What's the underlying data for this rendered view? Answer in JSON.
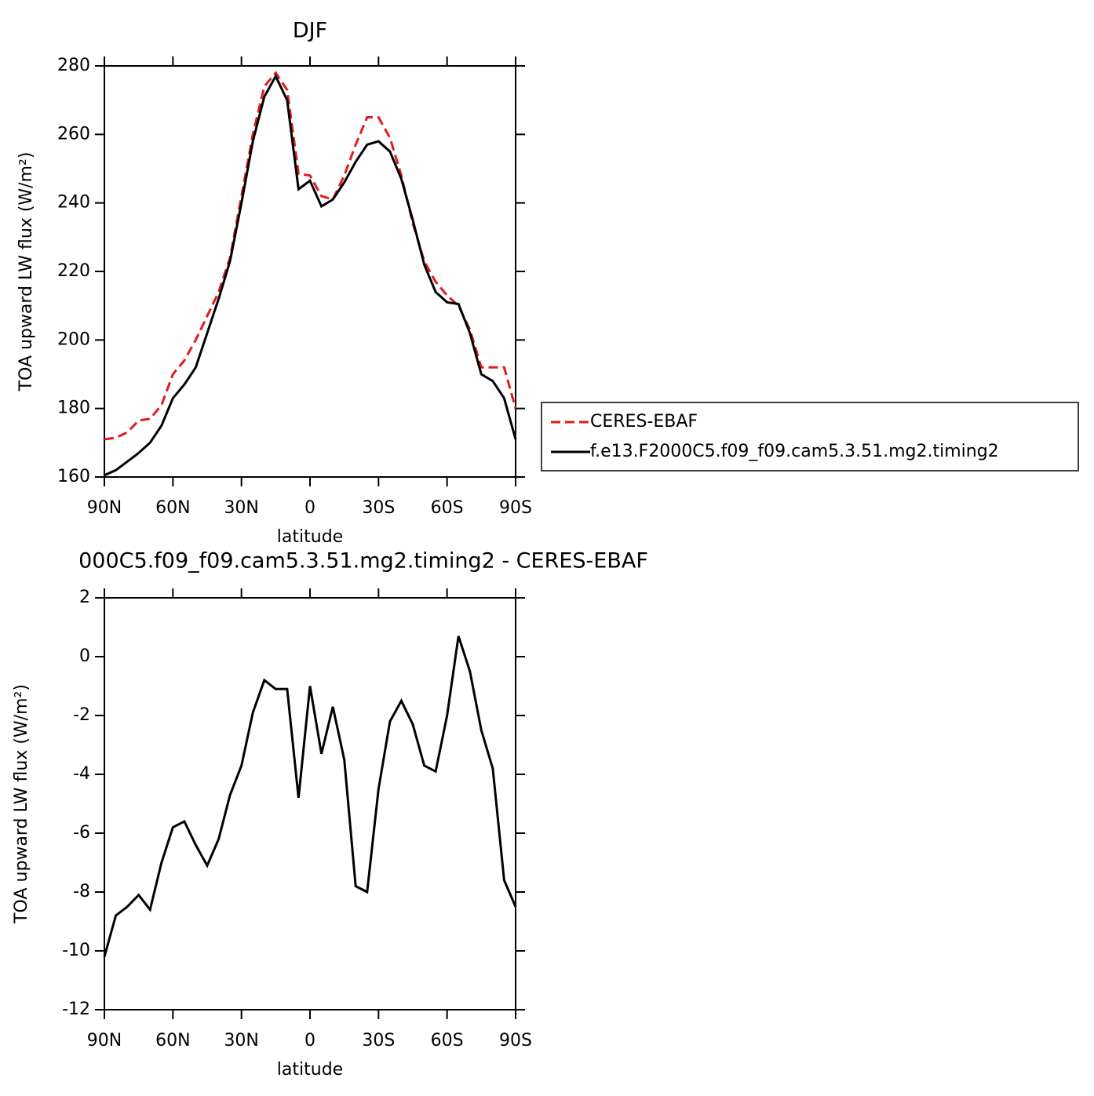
{
  "chart_data": [
    {
      "type": "line",
      "title": "DJF",
      "x_label": "latitude",
      "y_label": "TOA upward LW flux (W/m²)",
      "x": [
        90,
        85,
        80,
        75,
        70,
        65,
        60,
        55,
        50,
        45,
        40,
        35,
        30,
        25,
        20,
        15,
        10,
        5,
        0,
        -5,
        -10,
        -15,
        -20,
        -25,
        -30,
        -35,
        -40,
        -45,
        -50,
        -55,
        -60,
        -65,
        -70,
        -75,
        -80,
        -85,
        -90
      ],
      "series": [
        {
          "name": "CERES-EBAF",
          "color": "#e41a1c",
          "style": "dashed",
          "values": [
            171,
            171.5,
            173,
            176.5,
            177,
            181,
            190,
            194,
            200,
            207,
            214,
            224,
            242,
            260,
            274,
            278,
            273,
            248.5,
            248,
            242,
            241,
            248,
            257,
            265,
            265,
            259,
            248,
            234,
            223,
            217,
            213,
            210,
            203,
            192,
            192,
            192,
            180
          ]
        },
        {
          "name": "f.e13.F2000C5.f09_f09.cam5.3.51.mg2.timing2",
          "color": "#000000",
          "style": "solid",
          "values": [
            160.5,
            162,
            164.5,
            167,
            170,
            175,
            183,
            187,
            192,
            202,
            212,
            223,
            240,
            258,
            271,
            277,
            270,
            244,
            246.5,
            239,
            241,
            246,
            252,
            257,
            258,
            255,
            247,
            235,
            222,
            214,
            211,
            210.5,
            202,
            190,
            188,
            183,
            171
          ]
        }
      ],
      "xlim": [
        90,
        -90
      ],
      "xticks": [
        {
          "value": 90,
          "label": "90N"
        },
        {
          "value": 60,
          "label": "60N"
        },
        {
          "value": 30,
          "label": "30N"
        },
        0,
        {
          "value": -30,
          "label": "30S"
        },
        {
          "value": -60,
          "label": "60S"
        },
        {
          "value": -90,
          "label": "90S"
        }
      ],
      "ylim": [
        160,
        280
      ],
      "yticks": [
        160,
        180,
        200,
        220,
        240,
        260,
        280
      ],
      "legend": "outside-right"
    },
    {
      "type": "line",
      "title": "000C5.f09_f09.cam5.3.51.mg2.timing2 - CERES-EBAF",
      "x_label": "latitude",
      "y_label": "TOA upward LW flux (W/m²)",
      "x": [
        90,
        85,
        80,
        75,
        70,
        65,
        60,
        55,
        50,
        45,
        40,
        35,
        30,
        25,
        20,
        15,
        10,
        5,
        0,
        -5,
        -10,
        -15,
        -20,
        -25,
        -30,
        -35,
        -40,
        -45,
        -50,
        -55,
        -60,
        -65,
        -70,
        -75,
        -80,
        -85,
        -90
      ],
      "series": [
        {
          "color": "#000000",
          "style": "solid",
          "values": [
            -10.2,
            -8.8,
            -8.5,
            -8.1,
            -8.6,
            -7.0,
            -5.8,
            -5.6,
            -6.4,
            -7.1,
            -6.2,
            -4.7,
            -3.7,
            -1.9,
            -0.8,
            -1.1,
            -1.1,
            -4.8,
            -1.0,
            -3.3,
            -1.7,
            -3.5,
            -7.8,
            -8.0,
            -4.5,
            -2.2,
            -1.5,
            -2.3,
            -3.7,
            -3.9,
            -2.0,
            0.7,
            -0.5,
            -2.5,
            -3.8,
            -7.6,
            -8.5
          ]
        }
      ],
      "xlim": [
        90,
        -90
      ],
      "xticks": [
        {
          "value": 90,
          "label": "90N"
        },
        {
          "value": 60,
          "label": "60N"
        },
        {
          "value": 30,
          "label": "30N"
        },
        0,
        {
          "value": -30,
          "label": "30S"
        },
        {
          "value": -60,
          "label": "60S"
        },
        {
          "value": -90,
          "label": "90S"
        }
      ],
      "ylim": [
        -12,
        2
      ],
      "yticks": [
        -12,
        -10,
        -8,
        -6,
        -4,
        -2,
        0,
        2
      ]
    }
  ]
}
